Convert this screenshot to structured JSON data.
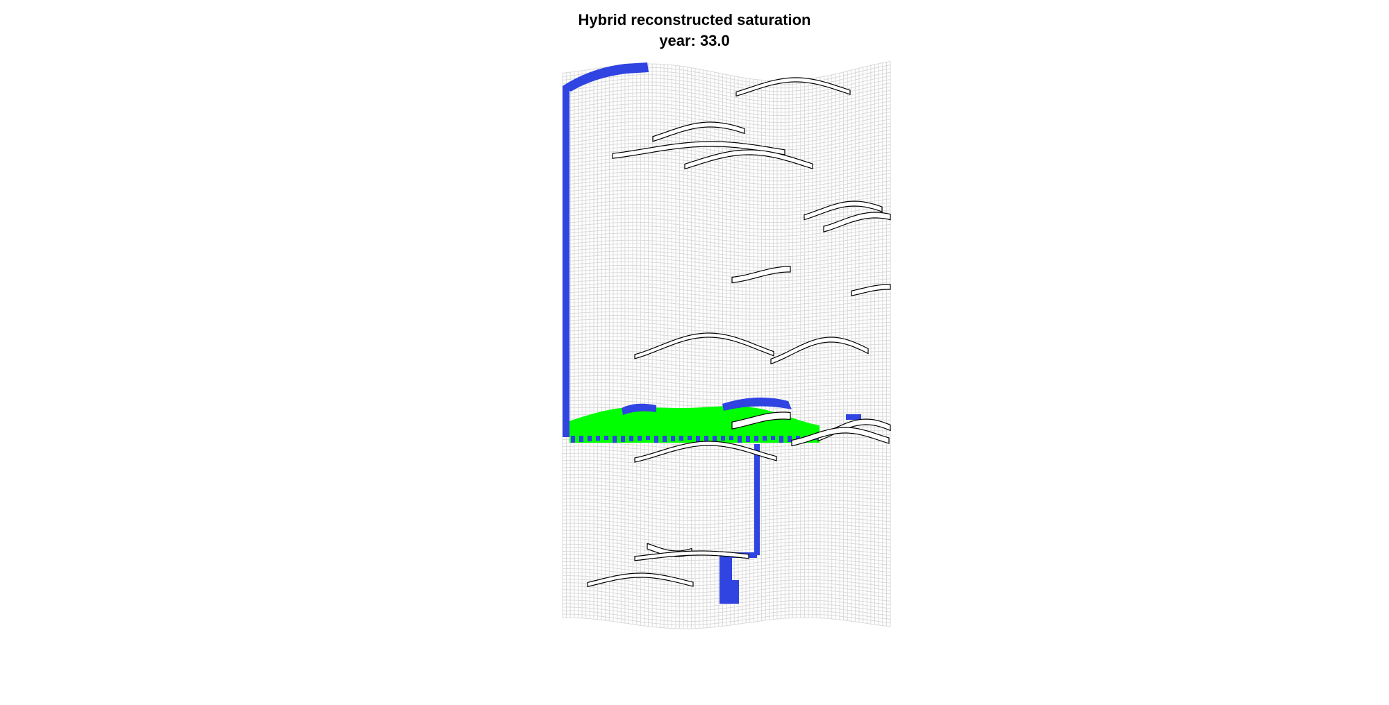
{
  "figure": {
    "title": "Hybrid reconstructed saturation",
    "subtitle": "year: 33.0"
  },
  "colors": {
    "grid_line": "#d9d9d9",
    "fault_outline": "#000000",
    "fault_fill": "#ffffff",
    "low_saturation": "#2f44e0",
    "mid_saturation": "#1a9e6e",
    "high_saturation": "#00ff00",
    "background": "#ffffff"
  }
}
